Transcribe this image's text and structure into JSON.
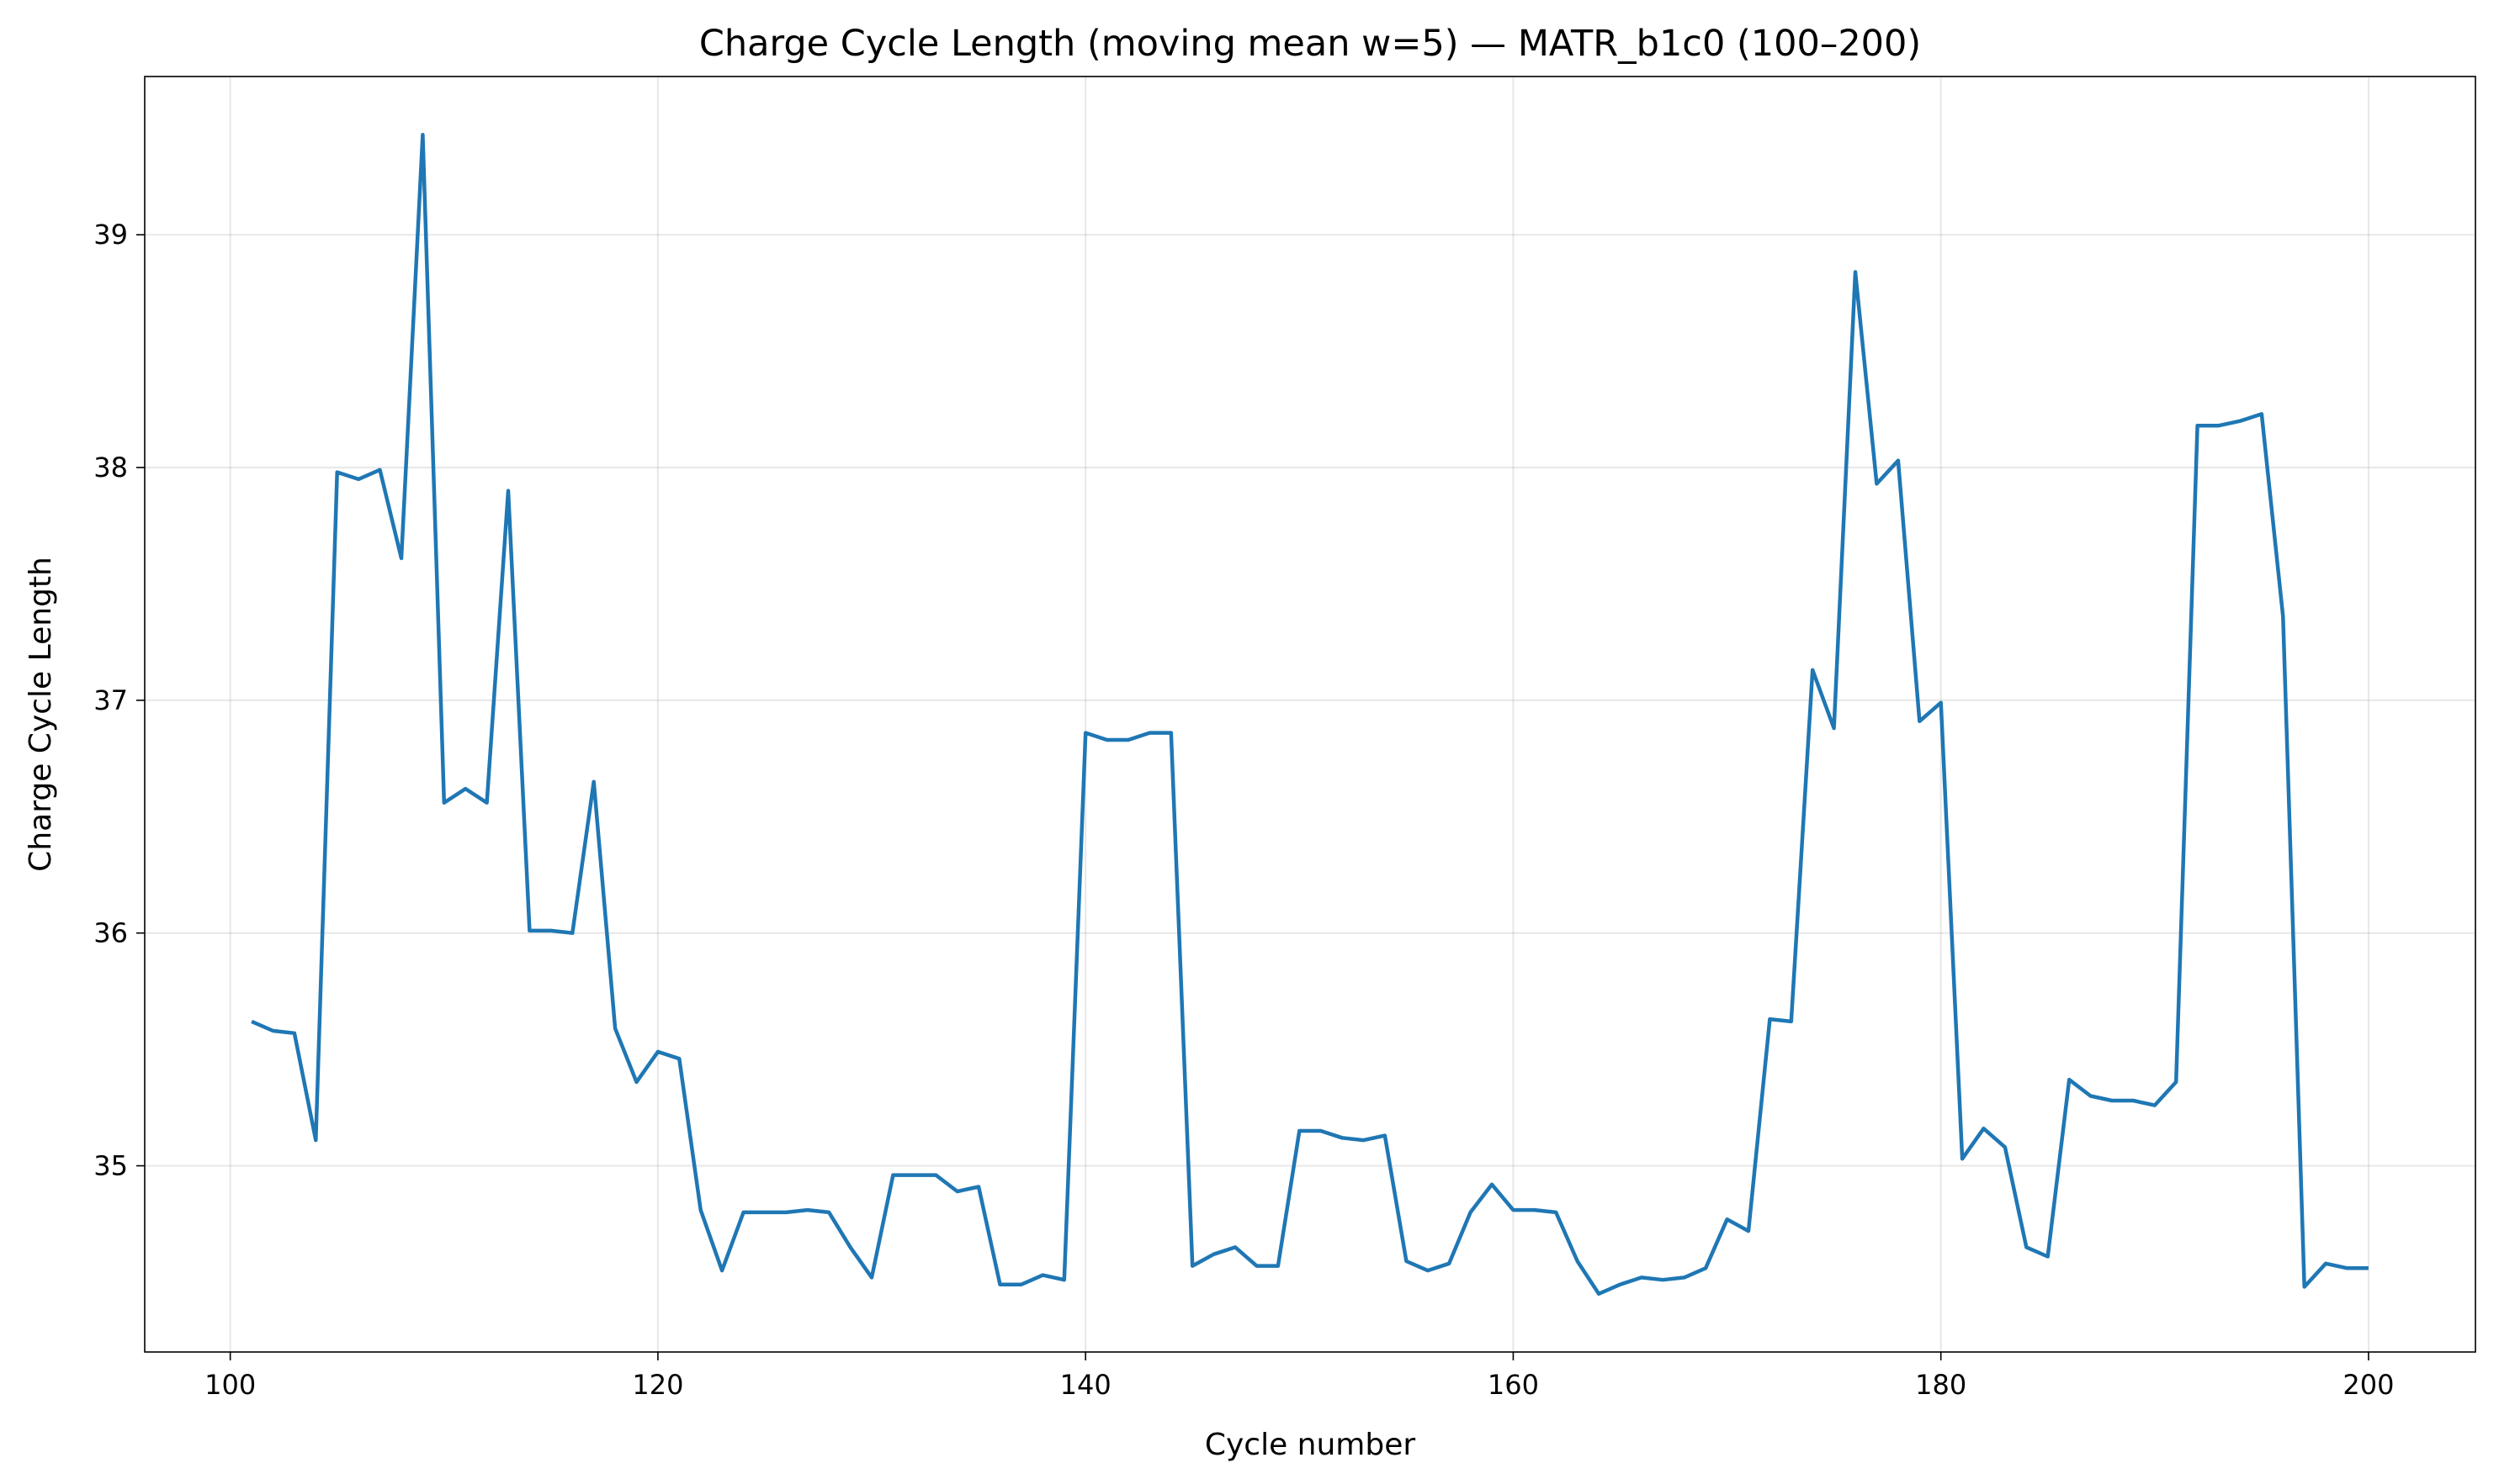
{
  "chart_data": {
    "type": "line",
    "title": "Charge Cycle Length (moving mean w=5) — MATR_b1c0 (100–200)",
    "xlabel": "Cycle number",
    "ylabel": "Charge Cycle Length",
    "xlim": [
      96,
      205
    ],
    "ylim": [
      34.2,
      39.68
    ],
    "xticks": [
      100,
      120,
      140,
      160,
      180,
      200
    ],
    "yticks": [
      35,
      36,
      37,
      38,
      39
    ],
    "grid": true,
    "series": [
      {
        "color": "#1f77b4",
        "x": [
          101,
          102,
          103,
          104,
          105,
          106,
          107,
          108,
          109,
          110,
          111,
          112,
          113,
          114,
          115,
          116,
          117,
          118,
          119,
          120,
          121,
          122,
          123,
          124,
          125,
          126,
          127,
          128,
          129,
          130,
          131,
          132,
          133,
          134,
          135,
          136,
          137,
          138,
          139,
          140,
          141,
          142,
          143,
          144,
          145,
          146,
          147,
          148,
          149,
          150,
          151,
          152,
          153,
          154,
          155,
          156,
          157,
          158,
          159,
          160,
          161,
          162,
          163,
          164,
          165,
          166,
          167,
          168,
          169,
          170,
          171,
          172,
          173,
          174,
          175,
          176,
          177,
          178,
          179,
          180,
          181,
          182,
          183,
          184,
          185,
          186,
          187,
          188,
          189,
          190,
          191,
          192,
          193,
          194,
          195,
          196,
          197,
          198,
          199,
          200
        ],
        "values": [
          35.62,
          35.58,
          35.57,
          35.11,
          37.98,
          37.95,
          37.99,
          37.61,
          39.43,
          36.56,
          36.62,
          36.56,
          37.9,
          36.01,
          36.01,
          36.0,
          36.65,
          35.59,
          35.36,
          35.49,
          35.46,
          34.81,
          34.55,
          34.8,
          34.8,
          34.8,
          34.81,
          34.8,
          34.65,
          34.52,
          34.96,
          34.96,
          34.96,
          34.89,
          34.91,
          34.49,
          34.49,
          34.53,
          34.51,
          36.86,
          36.83,
          36.83,
          36.86,
          36.86,
          34.57,
          34.62,
          34.65,
          34.57,
          34.57,
          35.15,
          35.15,
          35.12,
          35.11,
          35.13,
          34.59,
          34.55,
          34.58,
          34.8,
          34.92,
          34.81,
          34.81,
          34.8,
          34.59,
          34.45,
          34.49,
          34.52,
          34.51,
          34.52,
          34.56,
          34.77,
          34.72,
          35.63,
          35.62,
          37.13,
          36.88,
          38.84,
          37.93,
          38.03,
          36.91,
          36.99,
          35.03,
          35.16,
          35.08,
          34.65,
          34.61,
          35.37,
          35.3,
          35.28,
          35.28,
          35.26,
          35.36,
          38.18,
          38.18,
          38.2,
          38.23,
          37.36,
          34.48,
          34.58,
          34.56,
          34.56
        ]
      }
    ]
  }
}
